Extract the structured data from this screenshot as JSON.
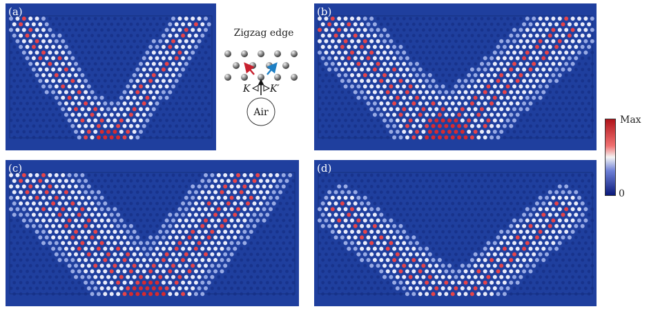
{
  "figure": {
    "panels": [
      {
        "id": "a",
        "label": "(a)"
      },
      {
        "id": "b",
        "label": "(b)"
      },
      {
        "id": "c",
        "label": "(c)"
      },
      {
        "id": "d",
        "label": "(d)"
      }
    ],
    "inset": {
      "title": "Zigzag edge",
      "k_left": "K",
      "k_right": "K′",
      "source": "Air"
    },
    "colorbar": {
      "max_label": "Max",
      "min_label": "0"
    }
  }
}
